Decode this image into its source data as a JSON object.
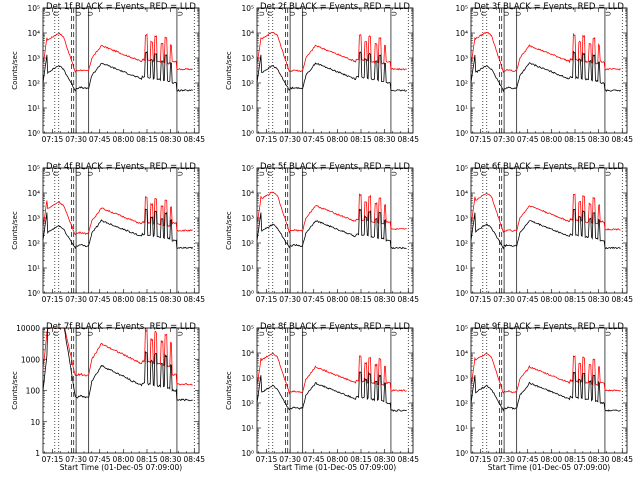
{
  "panels": [
    {
      "title": "Det 1f BLACK = Events, RED = LLD",
      "ymin_exp": 0,
      "ymax_exp": 5,
      "ytick_labels": [
        "10⁰",
        "10¹",
        "10²",
        "10³",
        "10⁴",
        "10⁵"
      ],
      "ylabel": "Counts/sec",
      "xlabel": "",
      "red_peak": 4.0,
      "black_peak": 2.7,
      "red_base": 2.5,
      "black_base": 1.8,
      "red_tail": 2.55,
      "black_tail": 1.7
    },
    {
      "title": "Det 2f BLACK = Events, RED = LLD",
      "ymin_exp": 0,
      "ymax_exp": 5,
      "ytick_labels": [
        "10⁰",
        "10¹",
        "10²",
        "10³",
        "10⁴",
        "10⁵"
      ],
      "ylabel": "Counts/sec",
      "xlabel": "",
      "red_peak": 4.05,
      "black_peak": 2.7,
      "red_base": 2.5,
      "black_base": 1.8,
      "red_tail": 2.55,
      "black_tail": 1.7
    },
    {
      "title": "Det 3f BLACK = Events, RED = LLD",
      "ymin_exp": 0,
      "ymax_exp": 5,
      "ytick_labels": [
        "10⁰",
        "10¹",
        "10²",
        "10³",
        "10⁴",
        "10⁵"
      ],
      "ylabel": "",
      "xlabel": "",
      "red_peak": 4.05,
      "black_peak": 2.7,
      "red_base": 2.5,
      "black_base": 1.8,
      "red_tail": 2.55,
      "black_tail": 1.7
    },
    {
      "title": "Det 4f BLACK = Events, RED = LLD",
      "ymin_exp": 0,
      "ymax_exp": 5,
      "ytick_labels": [
        "10⁰",
        "10¹",
        "10²",
        "10³",
        "10⁴",
        "10⁵"
      ],
      "ylabel": "Counts/sec",
      "xlabel": "",
      "red_peak": 3.65,
      "black_peak": 2.7,
      "red_base": 2.4,
      "black_base": 1.9,
      "red_tail": 2.5,
      "black_tail": 1.8
    },
    {
      "title": "Det 5f BLACK = Events, RED = LLD",
      "ymin_exp": 0,
      "ymax_exp": 5,
      "ytick_labels": [
        "10⁰",
        "10¹",
        "10²",
        "10³",
        "10⁴",
        "10⁵"
      ],
      "ylabel": "Counts/sec",
      "xlabel": "",
      "red_peak": 4.05,
      "black_peak": 2.75,
      "red_base": 2.5,
      "black_base": 1.9,
      "red_tail": 2.55,
      "black_tail": 1.8
    },
    {
      "title": "Det 6f BLACK = Events, RED = LLD",
      "ymin_exp": 0,
      "ymax_exp": 5,
      "ytick_labels": [
        "10⁰",
        "10¹",
        "10²",
        "10³",
        "10⁴",
        "10⁵"
      ],
      "ylabel": "",
      "xlabel": "",
      "red_peak": 4.0,
      "black_peak": 2.75,
      "red_base": 2.5,
      "black_base": 1.9,
      "red_tail": 2.55,
      "black_tail": 1.8
    },
    {
      "title": "Det 7f BLACK = Events, RED = LLD",
      "ymin_exp": 0,
      "ymax_exp": 4,
      "ytick_labels": [
        "1",
        "10",
        "100",
        "1000",
        "10000"
      ],
      "ylabel": "Counts/sec",
      "xlabel": "Start Time (01-Dec-05 07:09:00)",
      "red_peak": 4.3,
      "black_peak": 4.3,
      "red_base": 2.5,
      "black_base": 1.8,
      "red_tail": 2.2,
      "black_tail": 1.7
    },
    {
      "title": "Det 8f BLACK = Events, RED = LLD",
      "ymin_exp": 0,
      "ymax_exp": 5,
      "ytick_labels": [
        "10⁰",
        "10¹",
        "10²",
        "10³",
        "10⁴",
        "10⁵"
      ],
      "ylabel": "Counts/sec",
      "xlabel": "Start Time (01-Dec-05 07:09:00)",
      "red_peak": 4.0,
      "black_peak": 2.7,
      "red_base": 2.45,
      "black_base": 1.8,
      "red_tail": 2.5,
      "black_tail": 1.7
    },
    {
      "title": "Det 9f BLACK = Events, RED = LLD",
      "ymin_exp": 0,
      "ymax_exp": 5,
      "ytick_labels": [
        "10⁰",
        "10¹",
        "10²",
        "10³",
        "10⁴",
        "10⁵"
      ],
      "ylabel": "",
      "xlabel": "Start Time (01-Dec-05 07:09:00)",
      "red_peak": 4.0,
      "black_peak": 2.7,
      "red_base": 2.45,
      "black_base": 1.8,
      "red_tail": 2.5,
      "black_tail": 1.7
    }
  ],
  "chart_data": {
    "type": "line",
    "layout": "3x3 grid",
    "x_tick_labels": [
      "07:15",
      "07:30",
      "07:45",
      "08:00",
      "08:15",
      "08:30",
      "08:45"
    ],
    "x_ticks_minutes": [
      15,
      30,
      45,
      60,
      75,
      90,
      105
    ],
    "x_range_minutes": [
      9,
      108
    ],
    "yscale": "log",
    "series": [
      {
        "name": "BLACK = Events",
        "color": "#000000"
      },
      {
        "name": "RED = LLD",
        "color": "#ff0000"
      }
    ],
    "vlines": [
      {
        "x": 16.5,
        "style": "dotted"
      },
      {
        "x": 19,
        "style": "dotted"
      },
      {
        "x": 27,
        "style": "dashed"
      },
      {
        "x": 28.5,
        "style": "dashed"
      },
      {
        "x": 30,
        "style": "solid"
      },
      {
        "x": 38,
        "style": "solid"
      },
      {
        "x": 94,
        "style": "solid"
      },
      {
        "x": 105,
        "style": "dotted"
      }
    ],
    "markers": [
      {
        "x": 12,
        "label": "⊃"
      },
      {
        "x": 17,
        "label": "⊂"
      },
      {
        "x": 31.5,
        "label": "⊃"
      },
      {
        "x": 39,
        "label": "⊃"
      },
      {
        "x": 96,
        "label": "⊃"
      }
    ],
    "colors": {
      "events": "#000000",
      "lld": "#ff0000"
    }
  }
}
